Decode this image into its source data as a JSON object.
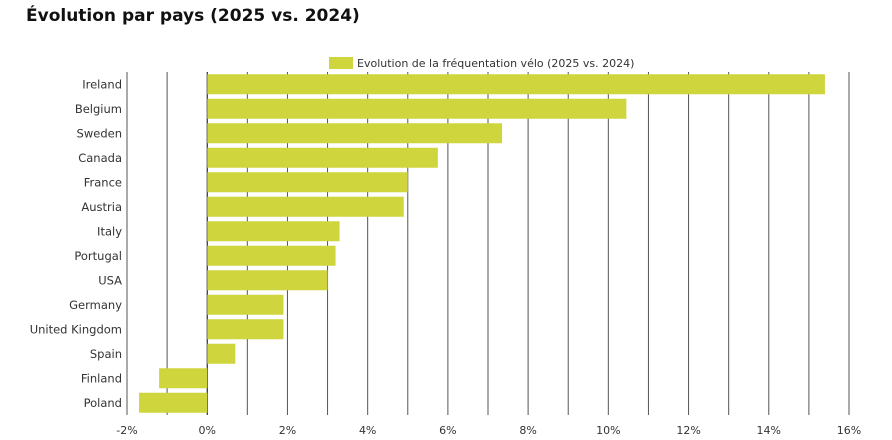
{
  "title": "Évolution par pays (2025 vs. 2024)",
  "chart_data": {
    "type": "bar",
    "orientation": "horizontal",
    "title": "Évolution par pays (2025 vs. 2024)",
    "categories": [
      "Ireland",
      "Belgium",
      "Sweden",
      "Canada",
      "France",
      "Austria",
      "Italy",
      "Portugal",
      "USA",
      "Germany",
      "United Kingdom",
      "Spain",
      "Finland",
      "Poland"
    ],
    "series": [
      {
        "name": "Evolution de la fréquentation vélo (2025 vs. 2024)",
        "values": [
          15.4,
          10.45,
          7.35,
          5.75,
          5.0,
          4.9,
          3.3,
          3.2,
          3.0,
          1.9,
          1.9,
          0.7,
          -1.2,
          -1.7
        ]
      }
    ],
    "xlim": [
      -2,
      16
    ],
    "xticks": [
      -2,
      0,
      2,
      4,
      6,
      8,
      10,
      12,
      14,
      16
    ],
    "xtick_labels": [
      "-2%",
      "0%",
      "2%",
      "4%",
      "6%",
      "8%",
      "10%",
      "12%",
      "14%",
      "16%"
    ],
    "grid": true,
    "legend": "top",
    "colors": {
      "bar": "#cfd63d",
      "grid": "#555555"
    }
  }
}
